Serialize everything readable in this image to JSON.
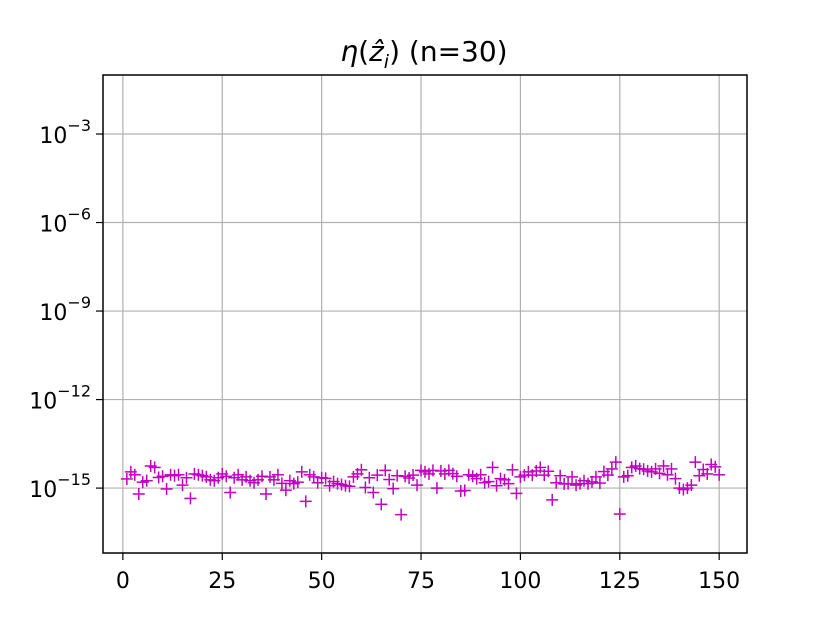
{
  "chart_data": {
    "type": "scatter",
    "title": "η(ẑ_i) (n=30)",
    "title_parts": {
      "eta": "η",
      "open": "(",
      "zhat": "ẑ",
      "sub": "i",
      "close": ")",
      "rest": " (n=30)"
    },
    "xlabel": "",
    "ylabel": "",
    "x_scale": "linear",
    "y_scale": "log",
    "xlim": [
      -5,
      157
    ],
    "ylim_exp": [
      -17.2,
      -1
    ],
    "x_ticks": [
      0,
      25,
      50,
      75,
      100,
      125,
      150
    ],
    "x_tick_labels": [
      "0",
      "25",
      "50",
      "75",
      "100",
      "125",
      "150"
    ],
    "y_ticks_exp": [
      -15,
      -12,
      -9,
      -6,
      -3
    ],
    "y_tick_labels": [
      {
        "base": "10",
        "exp": "−15"
      },
      {
        "base": "10",
        "exp": "−12"
      },
      {
        "base": "10",
        "exp": "−9"
      },
      {
        "base": "10",
        "exp": "−6"
      },
      {
        "base": "10",
        "exp": "−3"
      }
    ],
    "grid": true,
    "marker": "+",
    "color": "#c000c0",
    "series": [
      {
        "x": [
          1,
          2,
          3,
          4,
          5,
          6,
          7,
          8,
          9,
          10,
          11,
          12,
          13,
          14,
          15,
          16,
          17,
          18,
          19,
          20,
          21,
          22,
          23,
          24,
          25,
          26,
          27,
          28,
          29,
          30,
          31,
          32,
          33,
          34,
          35,
          36,
          37,
          38,
          39,
          40,
          41,
          42,
          43,
          44,
          45,
          46,
          47,
          48,
          49,
          50,
          51,
          52,
          53,
          54,
          55,
          56,
          57,
          58,
          59,
          60,
          61,
          62,
          63,
          64,
          65,
          66,
          67,
          68,
          69,
          70,
          71,
          72,
          73,
          74,
          75,
          76,
          77,
          78,
          79,
          80,
          81,
          82,
          83,
          84,
          85,
          86,
          87,
          88,
          89,
          90,
          91,
          92,
          93,
          94,
          95,
          96,
          97,
          98,
          99,
          100,
          101,
          102,
          103,
          104,
          105,
          106,
          107,
          108,
          109,
          110,
          111,
          112,
          113,
          114,
          115,
          116,
          117,
          118,
          119,
          120,
          121,
          122,
          123,
          124,
          125,
          126,
          127,
          128,
          129,
          130,
          131,
          132,
          133,
          134,
          135,
          136,
          137,
          138,
          139,
          140,
          141,
          142,
          143,
          144,
          145,
          146,
          147,
          148,
          149,
          150
        ],
        "y_exp": [
          -14.69,
          -14.45,
          -14.55,
          -15.2,
          -14.8,
          -14.75,
          -14.25,
          -14.3,
          -14.64,
          -14.6,
          -15.03,
          -14.55,
          -14.58,
          -14.55,
          -14.9,
          -14.65,
          -15.35,
          -14.52,
          -14.55,
          -14.58,
          -14.62,
          -14.72,
          -14.75,
          -14.65,
          -14.52,
          -14.6,
          -15.15,
          -14.65,
          -14.55,
          -14.72,
          -14.62,
          -14.75,
          -14.82,
          -14.72,
          -14.6,
          -15.2,
          -14.62,
          -14.72,
          -14.55,
          -14.84,
          -15.07,
          -14.75,
          -14.85,
          -14.8,
          -14.45,
          -15.45,
          -14.55,
          -14.62,
          -14.82,
          -14.65,
          -14.67,
          -14.92,
          -14.78,
          -14.85,
          -14.88,
          -14.92,
          -14.94,
          -14.62,
          -14.52,
          -14.38,
          -14.98,
          -14.65,
          -15.15,
          -14.56,
          -15.55,
          -14.4,
          -14.71,
          -15.02,
          -14.58,
          -15.9,
          -14.6,
          -14.66,
          -14.56,
          -14.9,
          -14.4,
          -14.45,
          -14.52,
          -14.4,
          -15.0,
          -14.42,
          -14.52,
          -14.4,
          -14.51,
          -14.6,
          -15.1,
          -15.08,
          -14.55,
          -14.6,
          -14.68,
          -14.55,
          -14.82,
          -14.78,
          -14.3,
          -14.92,
          -14.68,
          -14.72,
          -14.85,
          -14.38,
          -15.18,
          -14.62,
          -14.56,
          -14.45,
          -14.56,
          -14.42,
          -14.3,
          -14.56,
          -14.43,
          -15.4,
          -14.82,
          -14.58,
          -14.86,
          -14.85,
          -14.62,
          -14.9,
          -14.85,
          -14.75,
          -14.85,
          -14.79,
          -14.62,
          -14.83,
          -14.44,
          -14.56,
          -14.35,
          -14.12,
          -15.88,
          -14.62,
          -14.58,
          -14.3,
          -14.25,
          -14.34,
          -14.36,
          -14.42,
          -14.45,
          -14.35,
          -14.5,
          -14.25,
          -14.55,
          -14.35,
          -14.68,
          -15.0,
          -15.05,
          -15.0,
          -14.9,
          -14.12,
          -14.58,
          -14.37,
          -14.52,
          -14.2,
          -14.28,
          -14.55
        ]
      }
    ]
  }
}
